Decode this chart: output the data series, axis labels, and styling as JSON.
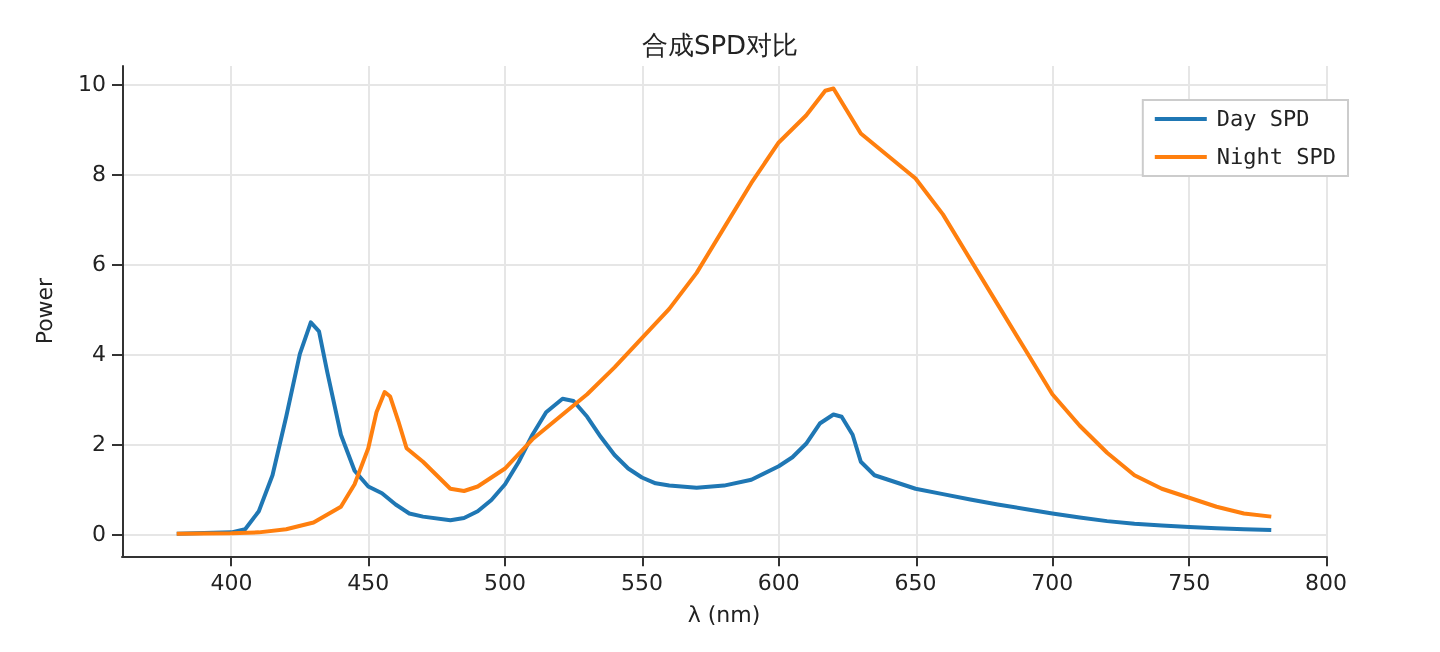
{
  "chart_data": {
    "type": "line",
    "title": "合成SPD对比",
    "xlabel": "λ (nm)",
    "ylabel": "Power",
    "xlim": [
      360,
      800
    ],
    "xticks": [
      400,
      450,
      500,
      550,
      600,
      650,
      700,
      750,
      800
    ],
    "ylim": [
      -0.5,
      10.4
    ],
    "yticks": [
      0,
      2,
      4,
      6,
      8,
      10
    ],
    "grid": true,
    "legend": "top right",
    "marker": "none",
    "line_style": "solid",
    "series": [
      {
        "name": "Day SPD",
        "color": "#1f77b4",
        "x": [
          380,
          400,
          405,
          410,
          415,
          420,
          425,
          429,
          432,
          435,
          440,
          445,
          450,
          455,
          460,
          465,
          470,
          480,
          485,
          490,
          495,
          500,
          505,
          510,
          515,
          521,
          525,
          530,
          535,
          540,
          545,
          550,
          555,
          560,
          570,
          580,
          590,
          600,
          605,
          610,
          615,
          620,
          623,
          627,
          630,
          635,
          640,
          650,
          660,
          670,
          680,
          690,
          700,
          710,
          720,
          730,
          740,
          750,
          760,
          770,
          780
        ],
        "values": [
          0,
          0.03,
          0.1,
          0.5,
          1.3,
          2.6,
          4.0,
          4.7,
          4.5,
          3.6,
          2.2,
          1.4,
          1.05,
          0.9,
          0.65,
          0.45,
          0.38,
          0.3,
          0.35,
          0.5,
          0.75,
          1.1,
          1.6,
          2.2,
          2.7,
          3.0,
          2.95,
          2.6,
          2.15,
          1.75,
          1.45,
          1.25,
          1.12,
          1.07,
          1.02,
          1.07,
          1.2,
          1.5,
          1.7,
          2.0,
          2.45,
          2.65,
          2.6,
          2.2,
          1.6,
          1.3,
          1.2,
          1.0,
          0.88,
          0.76,
          0.65,
          0.55,
          0.45,
          0.36,
          0.28,
          0.22,
          0.18,
          0.15,
          0.12,
          0.1,
          0.08
        ]
      },
      {
        "name": "Night SPD",
        "color": "#ff7f0e",
        "x": [
          380,
          400,
          410,
          420,
          430,
          440,
          445,
          450,
          453,
          456,
          458,
          461,
          464,
          470,
          475,
          480,
          485,
          490,
          500,
          510,
          520,
          530,
          540,
          550,
          560,
          570,
          580,
          590,
          600,
          610,
          617,
          620,
          625,
          630,
          640,
          650,
          660,
          670,
          680,
          690,
          700,
          710,
          720,
          730,
          740,
          750,
          760,
          770,
          780
        ],
        "values": [
          0,
          0.01,
          0.03,
          0.1,
          0.25,
          0.6,
          1.1,
          1.9,
          2.7,
          3.15,
          3.05,
          2.5,
          1.9,
          1.6,
          1.3,
          1.0,
          0.95,
          1.05,
          1.45,
          2.1,
          2.6,
          3.1,
          3.7,
          4.35,
          5.0,
          5.8,
          6.8,
          7.8,
          8.7,
          9.3,
          9.85,
          9.9,
          9.4,
          8.9,
          8.4,
          7.9,
          7.1,
          6.1,
          5.1,
          4.1,
          3.1,
          2.4,
          1.8,
          1.3,
          1.0,
          0.8,
          0.6,
          0.45,
          0.38
        ]
      }
    ]
  }
}
